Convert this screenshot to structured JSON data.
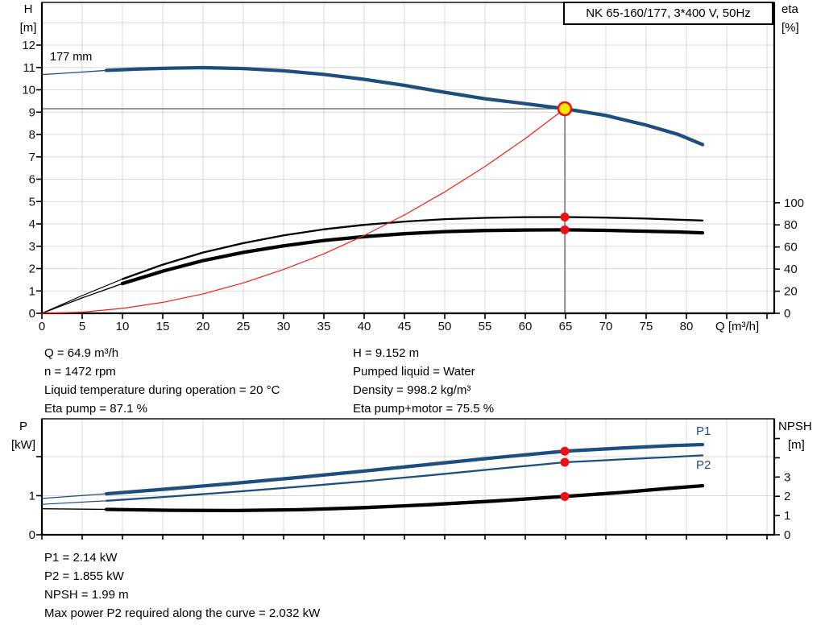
{
  "title_box": "NK 65-160/177, 3*400 V, 50Hz",
  "colors": {
    "curve_blue": "#1d4e7e",
    "curve_black": "#000000",
    "curve_red": "#f02011",
    "grid": "#d9d9d9",
    "duty_line": "#5a5a5a",
    "duty_fill_yellow": "#ffe800",
    "marker_red": "#ee1111",
    "frame": "#000000"
  },
  "top_chart": {
    "y_left_unit_line1": "H",
    "y_left_unit_line2": "[m]",
    "y_right_unit_line1": "eta",
    "y_right_unit_line2": "[%]",
    "x_axis_label": "Q [m³/h]",
    "impeller_label": "177 mm"
  },
  "info": {
    "left": [
      "Q = 64.9 m³/h",
      "n = 1472 rpm",
      "Liquid temperature during operation = 20 °C",
      "Eta pump = 87.1 %"
    ],
    "right": [
      "H = 9.152 m",
      "Pumped liquid = Water",
      "Density = 998.2 kg/m³",
      "Eta pump+motor = 75.5 %"
    ]
  },
  "bottom_chart": {
    "y_left_unit_line1": "P",
    "y_left_unit_line2": "[kW]",
    "y_right_unit_line1": "NPSH",
    "y_right_unit_line2": "[m]",
    "p1_label": "P1",
    "p2_label": "P2"
  },
  "footer": [
    "P1 = 2.14 kW",
    "P2 = 1.855 kW",
    "NPSH = 1.99 m",
    "Max power P2 required along the curve = 2.032 kW"
  ],
  "chart_data": [
    {
      "type": "line",
      "title": "NK 65-160/177, 3*400 V, 50Hz",
      "xlabel": "Q [m³/h]",
      "ylabel_left": "H [m]",
      "ylabel_right": "eta [%]",
      "xlim": [
        0,
        90.9
      ],
      "ylim_left": [
        0,
        13.9
      ],
      "ylim_right": [
        0,
        100
      ],
      "grid": true,
      "x_ticks": [
        0,
        5,
        10,
        15,
        20,
        25,
        30,
        35,
        40,
        45,
        50,
        55,
        60,
        65,
        70,
        75,
        80,
        85,
        90
      ],
      "x_tick_labels": [
        "0",
        "5",
        "10",
        "15",
        "20",
        "25",
        "30",
        "35",
        "40",
        "45",
        "50",
        "55",
        "60",
        "65",
        "70",
        "75",
        "80",
        "",
        ""
      ],
      "y_left_ticks": [
        0,
        1,
        2,
        3,
        4,
        5,
        6,
        7,
        8,
        9,
        10,
        11,
        12
      ],
      "y_left_tick_labels": [
        "0",
        "1",
        "2",
        "3",
        "4",
        "5",
        "6",
        "7",
        "8",
        "9",
        "10",
        "11",
        "12"
      ],
      "y_right_ticks": [
        0,
        20,
        40,
        60,
        80,
        100
      ],
      "y_right_tick_labels": [
        "0",
        "20",
        "40",
        "60",
        "80",
        "100"
      ],
      "duty_point": {
        "q": 64.9,
        "h": 9.152
      },
      "duty_markers_eta": [
        87.1,
        75.5
      ],
      "series": [
        {
          "name": "head-curve-177mm",
          "axis": "h",
          "color_key": "curve_blue",
          "emphasis": "bold",
          "thick_from": 8,
          "points": [
            [
              0,
              10.68
            ],
            [
              4,
              10.77
            ],
            [
              8,
              10.87
            ],
            [
              12,
              10.93
            ],
            [
              16,
              10.97
            ],
            [
              20,
              10.99
            ],
            [
              25,
              10.95
            ],
            [
              30,
              10.85
            ],
            [
              35,
              10.69
            ],
            [
              40,
              10.47
            ],
            [
              45,
              10.2
            ],
            [
              50,
              9.89
            ],
            [
              55,
              9.6
            ],
            [
              60,
              9.38
            ],
            [
              64.9,
              9.152
            ],
            [
              70,
              8.85
            ],
            [
              75,
              8.42
            ],
            [
              79,
              8.0
            ],
            [
              82,
              7.55
            ]
          ]
        },
        {
          "name": "eta-pump",
          "axis": "eta",
          "color_key": "curve_black",
          "emphasis": "medium",
          "thick_from": 8,
          "points": [
            [
              0,
              0
            ],
            [
              5,
              16
            ],
            [
              10,
              31
            ],
            [
              15,
              44
            ],
            [
              20,
              55
            ],
            [
              25,
              63.5
            ],
            [
              30,
              70.5
            ],
            [
              35,
              76
            ],
            [
              40,
              80
            ],
            [
              45,
              83
            ],
            [
              50,
              85.2
            ],
            [
              55,
              86.4
            ],
            [
              60,
              87.0
            ],
            [
              64.9,
              87.1
            ],
            [
              70,
              86.6
            ],
            [
              75,
              85.7
            ],
            [
              79,
              84.7
            ],
            [
              82,
              84.0
            ]
          ]
        },
        {
          "name": "eta-pump-motor",
          "axis": "eta",
          "color_key": "curve_black",
          "emphasis": "bold",
          "thick_from": 8,
          "points": [
            [
              0,
              0
            ],
            [
              5,
              13.9
            ],
            [
              10,
              26.9
            ],
            [
              15,
              38.1
            ],
            [
              20,
              47.7
            ],
            [
              25,
              55.1
            ],
            [
              30,
              61.1
            ],
            [
              35,
              65.9
            ],
            [
              40,
              69.4
            ],
            [
              45,
              72.0
            ],
            [
              50,
              73.9
            ],
            [
              55,
              74.9
            ],
            [
              60,
              75.4
            ],
            [
              64.9,
              75.5
            ],
            [
              70,
              75.1
            ],
            [
              75,
              74.3
            ],
            [
              79,
              73.6
            ],
            [
              82,
              72.8
            ]
          ]
        },
        {
          "name": "system-curve",
          "axis": "h",
          "color_key": "curve_red",
          "emphasis": "thin",
          "thick_from": null,
          "points": [
            [
              0,
              0
            ],
            [
              5,
              0.05
            ],
            [
              10,
              0.22
            ],
            [
              15,
              0.49
            ],
            [
              20,
              0.87
            ],
            [
              25,
              1.36
            ],
            [
              30,
              1.96
            ],
            [
              35,
              2.66
            ],
            [
              40,
              3.48
            ],
            [
              45,
              4.4
            ],
            [
              50,
              5.43
            ],
            [
              55,
              6.57
            ],
            [
              60,
              7.82
            ],
            [
              64.9,
              9.152
            ]
          ]
        }
      ]
    },
    {
      "type": "line",
      "title": "",
      "xlabel": "",
      "ylabel_left": "P [kW]",
      "ylabel_right": "NPSH [m]",
      "xlim": [
        0,
        90.9
      ],
      "ylim_left": [
        0,
        2.97
      ],
      "ylim_right": [
        0,
        6
      ],
      "grid": true,
      "x_ticks": [
        0,
        5,
        10,
        15,
        20,
        25,
        30,
        35,
        40,
        45,
        50,
        55,
        60,
        65,
        70,
        75,
        80,
        85,
        90
      ],
      "x_tick_labels": [
        "",
        "",
        "",
        "",
        "",
        "",
        "",
        "",
        "",
        "",
        "",
        "",
        "",
        "",
        "",
        "",
        "",
        "",
        ""
      ],
      "y_left_ticks": [
        0,
        1,
        2
      ],
      "y_left_tick_labels": [
        "0",
        "1",
        ""
      ],
      "y_right_ticks": [
        0,
        1,
        2,
        3,
        4,
        5
      ],
      "y_right_tick_labels": [
        "0",
        "1",
        "2",
        "3",
        "",
        ""
      ],
      "grid_h_left_values": [
        1,
        2
      ],
      "duty_markers": [
        {
          "series": "p1-curve",
          "axis": "p",
          "q": 64.9,
          "value": 2.14
        },
        {
          "series": "p2-curve",
          "axis": "p",
          "q": 64.9,
          "value": 1.855
        },
        {
          "series": "npsh-curve",
          "axis": "npsh",
          "q": 64.9,
          "value": 1.99
        }
      ],
      "series": [
        {
          "name": "p1-curve",
          "axis": "p",
          "color_key": "curve_blue",
          "emphasis": "bold",
          "thick_from": 8,
          "points": [
            [
              0,
              0.93
            ],
            [
              8,
              1.05
            ],
            [
              16,
              1.18
            ],
            [
              24,
              1.32
            ],
            [
              32,
              1.47
            ],
            [
              40,
              1.63
            ],
            [
              48,
              1.8
            ],
            [
              56,
              1.97
            ],
            [
              64.9,
              2.14
            ],
            [
              72,
              2.22
            ],
            [
              78,
              2.28
            ],
            [
              82,
              2.31
            ]
          ]
        },
        {
          "name": "p2-curve",
          "axis": "p",
          "color_key": "curve_blue",
          "emphasis": "medium",
          "thick_from": 8,
          "points": [
            [
              0,
              0.78
            ],
            [
              8,
              0.87
            ],
            [
              16,
              0.98
            ],
            [
              24,
              1.1
            ],
            [
              32,
              1.23
            ],
            [
              40,
              1.37
            ],
            [
              48,
              1.52
            ],
            [
              56,
              1.68
            ],
            [
              64.9,
              1.855
            ],
            [
              72,
              1.93
            ],
            [
              78,
              1.99
            ],
            [
              82,
              2.032
            ]
          ]
        },
        {
          "name": "npsh-curve",
          "axis": "npsh",
          "color_key": "curve_black",
          "emphasis": "bold",
          "thick_from": 8,
          "points": [
            [
              0,
              1.35
            ],
            [
              8,
              1.32
            ],
            [
              16,
              1.27
            ],
            [
              24,
              1.26
            ],
            [
              32,
              1.3
            ],
            [
              40,
              1.41
            ],
            [
              48,
              1.56
            ],
            [
              56,
              1.75
            ],
            [
              64.9,
              1.99
            ],
            [
              72,
              2.2
            ],
            [
              78,
              2.42
            ],
            [
              82,
              2.55
            ]
          ]
        }
      ]
    }
  ]
}
